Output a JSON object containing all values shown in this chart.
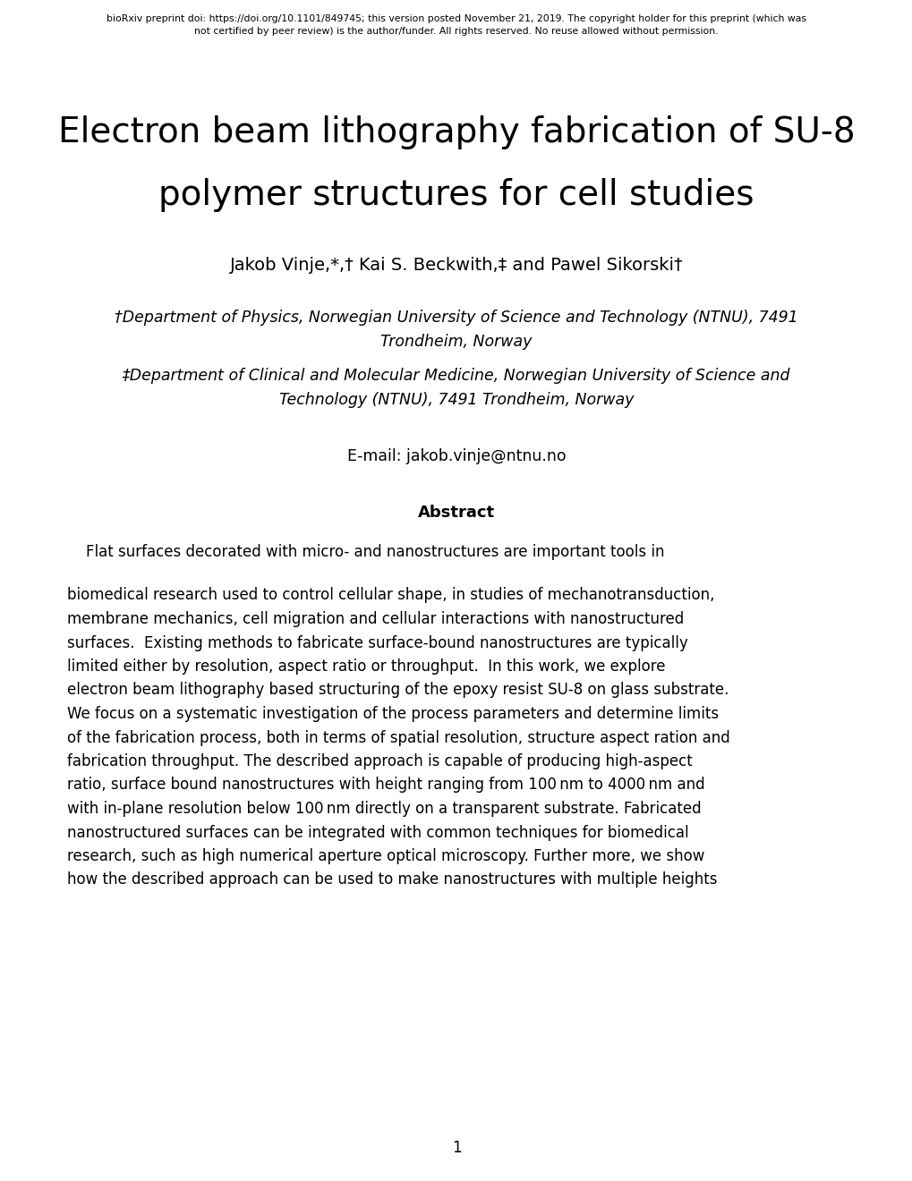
{
  "background_color": "#ffffff",
  "header_line1_pre": "bioRxiv preprint doi: ",
  "header_line1_url": "https://doi.org/10.1101/849745",
  "header_line1_post": "; this version posted November 21, 2019. The copyright holder for this preprint (which was",
  "header_line2": "not certified by peer review) is the author/funder. All rights reserved. No reuse allowed without permission.",
  "title_line1": "Electron beam lithography fabrication of SU-8",
  "title_line2": "polymer structures for cell studies",
  "authors": "Jakob Vinje,*,† Kai S. Beckwith,‡ and Pawel Sikorski†",
  "affil1": "†Department of Physics, Norwegian University of Science and Technology (NTNU), 7491",
  "affil1b": "Trondheim, Norway",
  "affil2": "‡Department of Clinical and Molecular Medicine, Norwegian University of Science and",
  "affil2b": "Technology (NTNU), 7491 Trondheim, Norway",
  "email_label": "E-mail: ",
  "email_address": "jakob.vinje@ntnu.no",
  "abstract_title": "Abstract",
  "abstract_indent_line": "    Flat surfaces decorated with micro- and nanostructures are important tools in",
  "abstract_lines": [
    "biomedical research used to control cellular shape, in studies of mechanotransduction,",
    "membrane mechanics, cell migration and cellular interactions with nanostructured",
    "surfaces.  Existing methods to fabricate surface-bound nanostructures are typically",
    "limited either by resolution, aspect ratio or throughput.  In this work, we explore",
    "electron beam lithography based structuring of the epoxy resist SU-8 on glass substrate.",
    "We focus on a systematic investigation of the process parameters and determine limits",
    "of the fabrication process, both in terms of spatial resolution, structure aspect ration and",
    "fabrication throughput. The described approach is capable of producing high-aspect",
    "ratio, surface bound nanostructures with height ranging from 100 nm to 4000 nm and",
    "with in-plane resolution below 100 nm directly on a transparent substrate. Fabricated",
    "nanostructured surfaces can be integrated with common techniques for biomedical",
    "research, such as high numerical aperture optical microscopy. Further more, we show",
    "how the described approach can be used to make nanostructures with multiple heights"
  ],
  "page_number": "1",
  "title_fontsize": 28,
  "author_fontsize": 14,
  "affil_fontsize": 12.5,
  "email_fontsize": 12.5,
  "abstract_title_fontsize": 13,
  "abstract_body_fontsize": 12,
  "header_fontsize": 7.8,
  "page_fontsize": 12,
  "fig_width": 10.2,
  "fig_height": 13.2,
  "dpi": 100
}
